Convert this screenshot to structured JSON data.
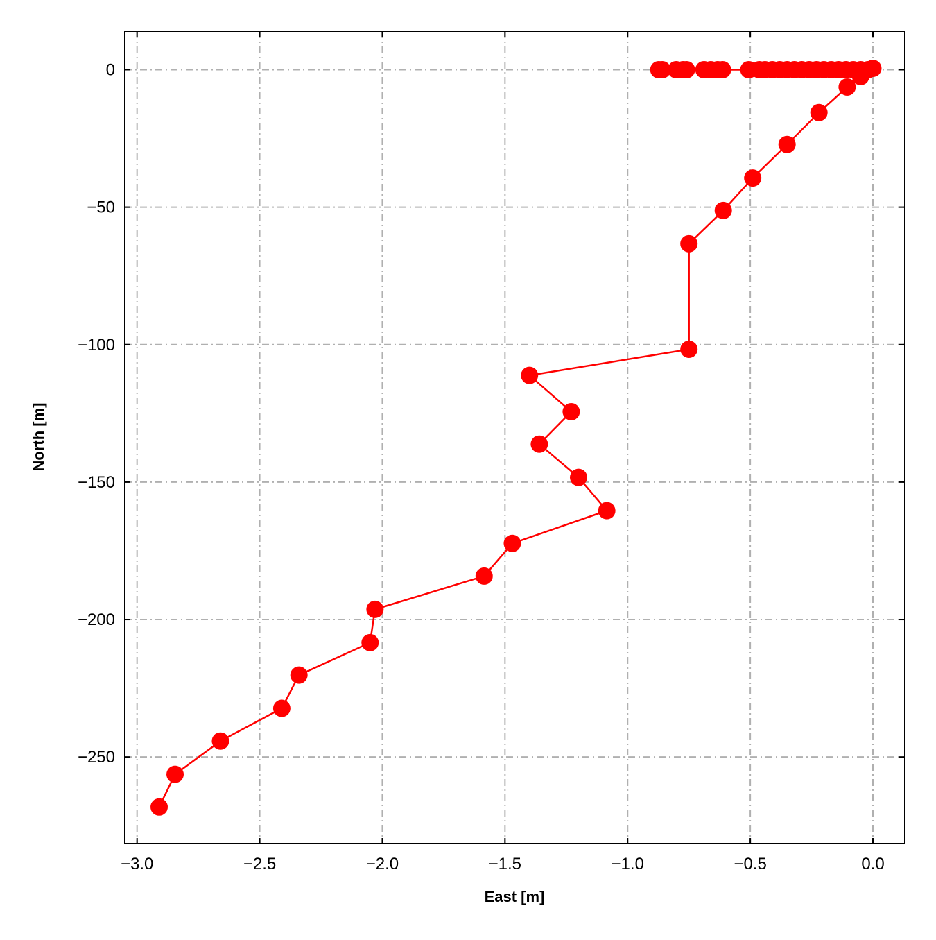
{
  "chart_data": {
    "type": "line",
    "title": "",
    "xlabel": "East [m]",
    "ylabel": "North [m]",
    "xlim": [
      -3.05,
      0.13
    ],
    "ylim": [
      -281.5,
      14
    ],
    "grid": true,
    "grid_style": "dash-dot",
    "x_ticks": [
      -3.0,
      -2.5,
      -2.0,
      -1.5,
      -1.0,
      -0.5,
      0.0
    ],
    "x_tick_labels": [
      "−3.0",
      "−2.5",
      "−2.0",
      "−1.5",
      "−1.0",
      "−0.5",
      "0.0"
    ],
    "y_ticks": [
      0,
      -50,
      -100,
      -150,
      -200,
      -250
    ],
    "y_tick_labels": [
      "0",
      "−50",
      "−100",
      "−150",
      "−200",
      "−250"
    ],
    "series": [
      {
        "color": "#ff0000",
        "marker": "circle",
        "x": [
          -0.873,
          -0.859,
          -0.802,
          -0.774,
          -0.76,
          -0.689,
          -0.661,
          -0.633,
          -0.613,
          -0.506,
          -0.463,
          -0.44,
          -0.41,
          -0.38,
          -0.35,
          -0.32,
          -0.29,
          -0.26,
          -0.23,
          -0.2,
          -0.17,
          -0.14,
          -0.11,
          -0.08,
          -0.05,
          -0.02,
          0.0,
          -0.05,
          -0.105,
          -0.22,
          -0.35,
          -0.49,
          -0.61,
          -0.75,
          -0.75,
          -1.4,
          -1.23,
          -1.36,
          -1.2,
          -1.085,
          -1.47,
          -1.585,
          -2.03,
          -2.05,
          -2.34,
          -2.41,
          -2.66,
          -2.845,
          -2.91
        ],
        "y": [
          0,
          0,
          0,
          0,
          0,
          0,
          0,
          0,
          0,
          0,
          0,
          0,
          0,
          0,
          0,
          0,
          0,
          0,
          0,
          0,
          0,
          0,
          0,
          0,
          0,
          0,
          0.5,
          -2.5,
          -6.3,
          -15.6,
          -27.2,
          -39.4,
          -51.2,
          -63.3,
          -101.7,
          -111.2,
          -124.4,
          -136.2,
          -148.3,
          -160.4,
          -172.3,
          -184.2,
          -196.3,
          -208.4,
          -220.2,
          -232.3,
          -244.2,
          -256.3,
          -268.2
        ]
      }
    ]
  }
}
